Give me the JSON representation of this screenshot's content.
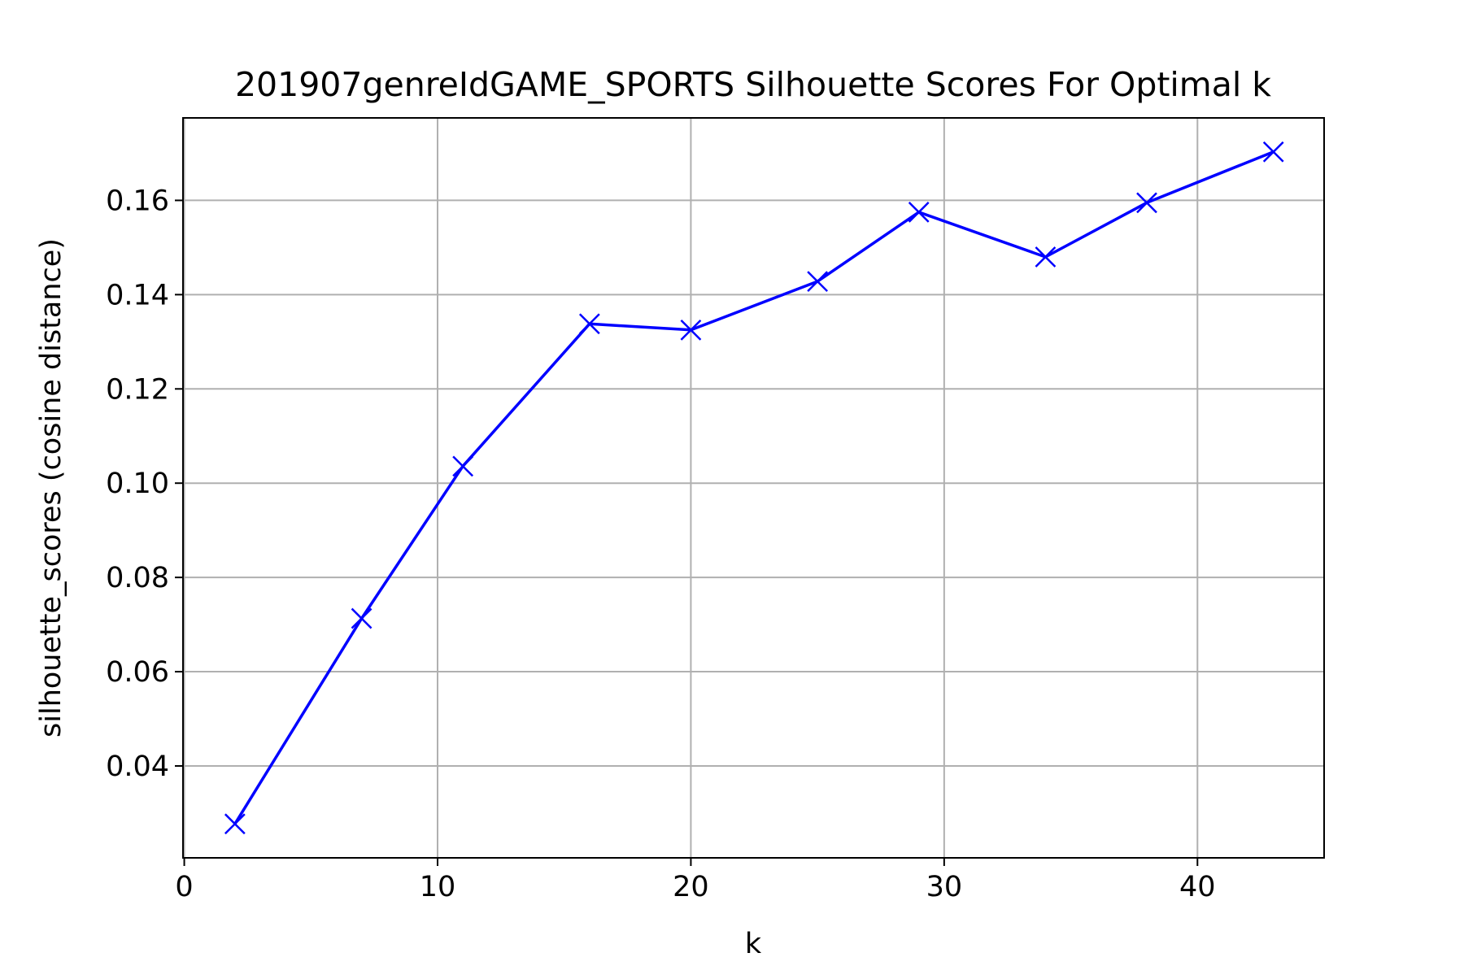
{
  "chart_data": {
    "type": "line",
    "title": "201907genreIdGAME_SPORTS Silhouette Scores For Optimal k",
    "xlabel": "k",
    "ylabel": "silhouette_scores (cosine distance)",
    "xlim": [
      -0.05,
      45
    ],
    "ylim": [
      0.0205,
      0.1775
    ],
    "xticks": [
      0,
      10,
      20,
      30,
      40
    ],
    "xtick_labels": [
      "0",
      "10",
      "20",
      "30",
      "40"
    ],
    "yticks": [
      0.04,
      0.06,
      0.08,
      0.1,
      0.12,
      0.14,
      0.16
    ],
    "ytick_labels": [
      "0.04",
      "0.06",
      "0.08",
      "0.10",
      "0.12",
      "0.14",
      "0.16"
    ],
    "grid": true,
    "legend": "none",
    "series": [
      {
        "marker": "x",
        "color": "#0000ff",
        "x": [
          2,
          7,
          11,
          16,
          20,
          25,
          29,
          34,
          38,
          43
        ],
        "y": [
          0.0277,
          0.0713,
          0.1036,
          0.1338,
          0.1325,
          0.1428,
          0.1575,
          0.148,
          0.1595,
          0.1703
        ]
      }
    ]
  }
}
